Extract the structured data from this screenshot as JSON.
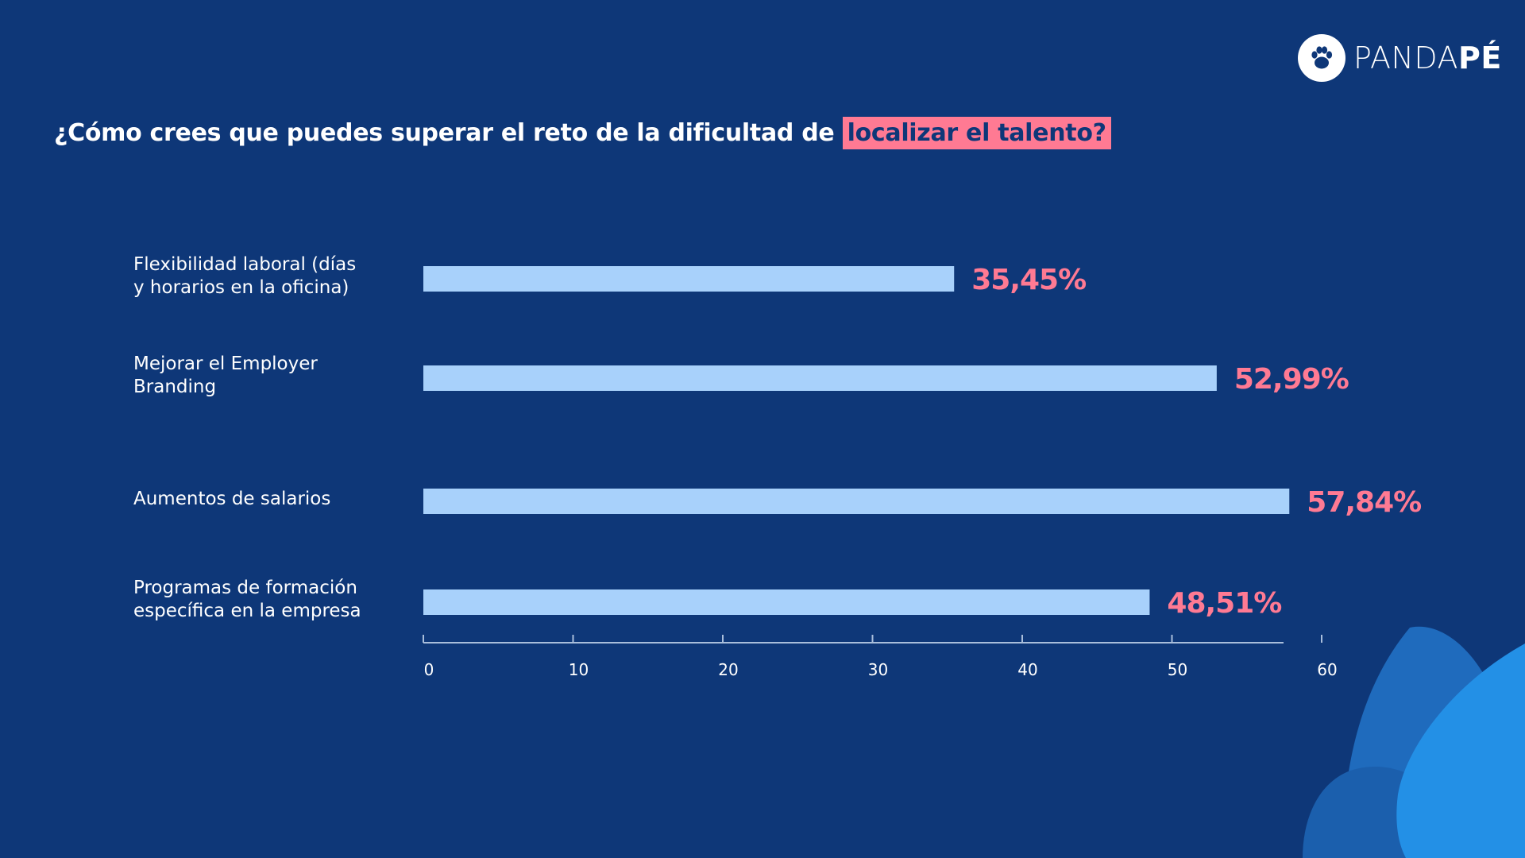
{
  "logo": {
    "text_light": "PANDA",
    "text_bold": "PÉ",
    "icon": "paw-icon"
  },
  "title": {
    "main": "¿Cómo crees que puedes superar el reto de la dificultad de ",
    "highlight": "localizar el talento?"
  },
  "colors": {
    "background": "#0e3778",
    "bar": "#a8d1fb",
    "value_label": "#ff7a93",
    "highlight": "#ff7a93",
    "decor_1": "#1f6bbd",
    "decor_2": "#2390e6"
  },
  "chart_data": {
    "type": "bar",
    "orientation": "horizontal",
    "categories": [
      [
        "Flexibilidad laboral (días",
        "y horarios en la oficina)"
      ],
      [
        "Mejorar el Employer",
        "Branding"
      ],
      [
        "Aumentos de salarios"
      ],
      [
        "Programas de formación",
        "específica en la empresa"
      ]
    ],
    "values": [
      35.45,
      52.99,
      57.84,
      48.51
    ],
    "value_labels": [
      "35,45%",
      "52,99%",
      "57,84%",
      "48,51%"
    ],
    "xlim": [
      0,
      60
    ],
    "x_ticks": [
      0,
      10,
      20,
      30,
      40,
      50,
      60
    ],
    "grid": false,
    "legend": "none"
  }
}
